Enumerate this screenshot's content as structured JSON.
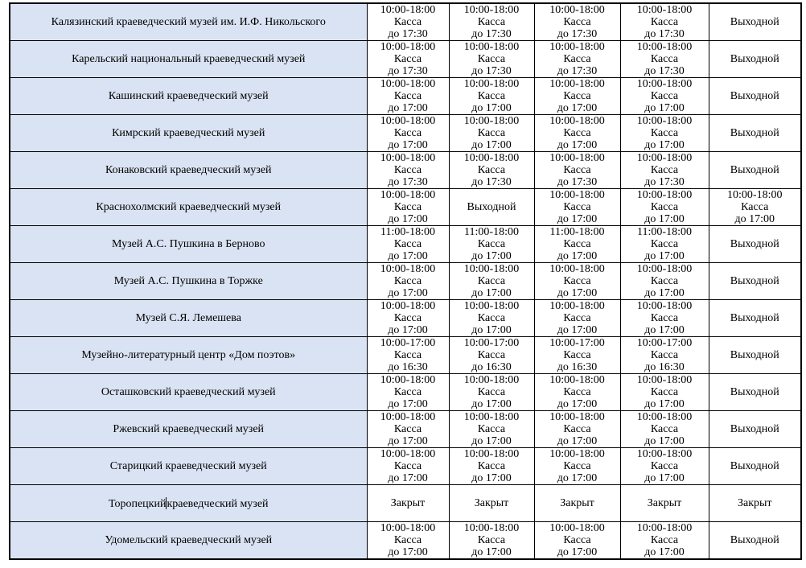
{
  "table": {
    "name_column_bg": "#dae3f3",
    "border_color": "#000000",
    "closed_label": "Выходной",
    "shut_label": "Закрыт",
    "rows": [
      {
        "name": "Калязинский краеведческий музей им. И.Ф. Никольского",
        "cells": [
          [
            "10:00-18:00",
            "Касса",
            "до 17:30"
          ],
          [
            "10:00-18:00",
            "Касса",
            "до 17:30"
          ],
          [
            "10:00-18:00",
            "Касса",
            "до 17:30"
          ],
          [
            "10:00-18:00",
            "Касса",
            "до 17:30"
          ],
          [
            "Выходной"
          ]
        ]
      },
      {
        "name": "Карельский национальный краеведческий музей",
        "cells": [
          [
            "10:00-18:00",
            "Касса",
            "до 17:30"
          ],
          [
            "10:00-18:00",
            "Касса",
            "до 17:30"
          ],
          [
            "10:00-18:00",
            "Касса",
            "до 17:30"
          ],
          [
            "10:00-18:00",
            "Касса",
            "до 17:30"
          ],
          [
            "Выходной"
          ]
        ]
      },
      {
        "name": "Кашинский краеведческий музей",
        "cells": [
          [
            "10:00-18:00",
            "Касса",
            "до 17:00"
          ],
          [
            "10:00-18:00",
            "Касса",
            "до 17:00"
          ],
          [
            "10:00-18:00",
            "Касса",
            "до 17:00"
          ],
          [
            "10:00-18:00",
            "Касса",
            "до 17:00"
          ],
          [
            "Выходной"
          ]
        ]
      },
      {
        "name": "Кимрский краеведческий музей",
        "cells": [
          [
            "10:00-18:00",
            "Касса",
            "до 17:00"
          ],
          [
            "10:00-18:00",
            "Касса",
            "до 17:00"
          ],
          [
            "10:00-18:00",
            "Касса",
            "до 17:00"
          ],
          [
            "10:00-18:00",
            "Касса",
            "до 17:00"
          ],
          [
            "Выходной"
          ]
        ]
      },
      {
        "name": "Конаковский краеведческий музей",
        "cells": [
          [
            "10:00-18:00",
            "Касса",
            "до 17:30"
          ],
          [
            "10:00-18:00",
            "Касса",
            "до 17:30"
          ],
          [
            "10:00-18:00",
            "Касса",
            "до 17:30"
          ],
          [
            "10:00-18:00",
            "Касса",
            "до 17:30"
          ],
          [
            "Выходной"
          ]
        ]
      },
      {
        "name": "Краснохолмский краеведческий музей",
        "cells": [
          [
            "10:00-18:00",
            "Касса",
            "до 17:00"
          ],
          [
            "Выходной"
          ],
          [
            "10:00-18:00",
            "Касса",
            "до 17:00"
          ],
          [
            "10:00-18:00",
            "Касса",
            "до 17:00"
          ],
          [
            "10:00-18:00",
            "Касса",
            "до 17:00"
          ]
        ]
      },
      {
        "name": "Музей А.С. Пушкина в Берново",
        "cells": [
          [
            "11:00-18:00",
            "Касса",
            "до 17:00"
          ],
          [
            "11:00-18:00",
            "Касса",
            "до 17:00"
          ],
          [
            "11:00-18:00",
            "Касса",
            "до 17:00"
          ],
          [
            "11:00-18:00",
            "Касса",
            "до 17:00"
          ],
          [
            "Выходной"
          ]
        ]
      },
      {
        "name": "Музей А.С. Пушкина в Торжке",
        "cells": [
          [
            "10:00-18:00",
            "Касса",
            "до 17:00"
          ],
          [
            "10:00-18:00",
            "Касса",
            "до 17:00"
          ],
          [
            "10:00-18:00",
            "Касса",
            "до 17:00"
          ],
          [
            "10:00-18:00",
            "Касса",
            "до 17:00"
          ],
          [
            "Выходной"
          ]
        ]
      },
      {
        "name": "Музей С.Я. Лемешева",
        "cells": [
          [
            "10:00-18:00",
            "Касса",
            "до 17:00"
          ],
          [
            "10:00-18:00",
            "Касса",
            "до 17:00"
          ],
          [
            "10:00-18:00",
            "Касса",
            "до 17:00"
          ],
          [
            "10:00-18:00",
            "Касса",
            "до 17:00"
          ],
          [
            "Выходной"
          ]
        ]
      },
      {
        "name": "Музейно-литературный центр «Дом поэтов»",
        "cells": [
          [
            "10:00-17:00",
            "Касса",
            "до 16:30"
          ],
          [
            "10:00-17:00",
            "Касса",
            "до 16:30"
          ],
          [
            "10:00-17:00",
            "Касса",
            "до 16:30"
          ],
          [
            "10:00-17:00",
            "Касса",
            "до 16:30"
          ],
          [
            "Выходной"
          ]
        ]
      },
      {
        "name": "Осташковский краеведческий музей",
        "cells": [
          [
            "10:00-18:00",
            "Касса",
            "до 17:00"
          ],
          [
            "10:00-18:00",
            "Касса",
            "до 17:00"
          ],
          [
            "10:00-18:00",
            "Касса",
            "до 17:00"
          ],
          [
            "10:00-18:00",
            "Касса",
            "до 17:00"
          ],
          [
            "Выходной"
          ]
        ]
      },
      {
        "name": "Ржевский краеведческий музей",
        "cells": [
          [
            "10:00-18:00",
            "Касса",
            "до 17:00"
          ],
          [
            "10:00-18:00",
            "Касса",
            "до 17:00"
          ],
          [
            "10:00-18:00",
            "Касса",
            "до 17:00"
          ],
          [
            "10:00-18:00",
            "Касса",
            "до 17:00"
          ],
          [
            "Выходной"
          ]
        ]
      },
      {
        "name": "Старицкий краеведческий музей",
        "cells": [
          [
            "10:00-18:00",
            "Касса",
            "до 17:00"
          ],
          [
            "10:00-18:00",
            "Касса",
            "до 17:00"
          ],
          [
            "10:00-18:00",
            "Касса",
            "до 17:00"
          ],
          [
            "10:00-18:00",
            "Касса",
            "до 17:00"
          ],
          [
            "Выходной"
          ]
        ]
      },
      {
        "name": "Торопецкий краеведческий музей",
        "cursor": true,
        "name_parts": [
          "Торопецкий",
          "краеведческий музей"
        ],
        "cells": [
          [
            "Закрыт"
          ],
          [
            "Закрыт"
          ],
          [
            "Закрыт"
          ],
          [
            "Закрыт"
          ],
          [
            "Закрыт"
          ]
        ]
      },
      {
        "name": "Удомельский краеведческий музей",
        "cells": [
          [
            "10:00-18:00",
            "Касса",
            "до 17:00"
          ],
          [
            "10:00-18:00",
            "Касса",
            "до 17:00"
          ],
          [
            "10:00-18:00",
            "Касса",
            "до 17:00"
          ],
          [
            "10:00-18:00",
            "Касса",
            "до 17:00"
          ],
          [
            "Выходной"
          ]
        ]
      }
    ]
  }
}
